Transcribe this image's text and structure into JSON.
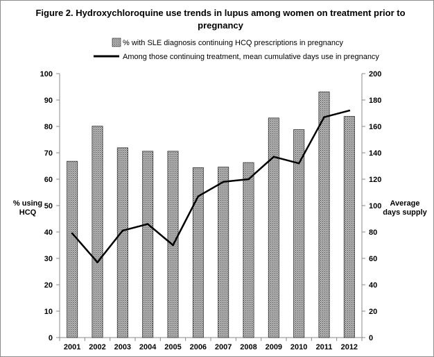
{
  "chart_data": {
    "type": "bar",
    "title": [
      "Figure 2. Hydroxychloroquine use trends in lupus among women on treatment prior to",
      "pregnancy"
    ],
    "categories": [
      "2001",
      "2002",
      "2003",
      "2004",
      "2005",
      "2006",
      "2007",
      "2008",
      "2009",
      "2010",
      "2011",
      "2012"
    ],
    "series": [
      {
        "name": "% with SLE diagnosis continuing HCQ prescriptions in pregnancy",
        "type": "bar",
        "axis": "left",
        "values": [
          66.8,
          80.1,
          71.9,
          70.6,
          70.6,
          64.4,
          64.6,
          66.3,
          83.2,
          78.8,
          93.1,
          83.8
        ]
      },
      {
        "name": "Among those continuing treatment, mean cumulative days use in pregnancy",
        "type": "line",
        "axis": "right",
        "values": [
          79,
          57,
          81,
          86,
          70,
          107,
          118,
          120,
          137,
          132,
          167,
          172
        ]
      }
    ],
    "ylabel": [
      "% using",
      "HCQ"
    ],
    "y2label": [
      "Average",
      "days supply"
    ],
    "ylim": [
      0,
      100
    ],
    "y2lim": [
      0,
      200
    ],
    "yticks": [
      0,
      10,
      20,
      30,
      40,
      50,
      60,
      70,
      80,
      90,
      100
    ],
    "y2ticks": [
      0,
      20,
      40,
      60,
      80,
      100,
      120,
      140,
      160,
      180,
      200
    ],
    "grid": false,
    "legend_position": "top"
  }
}
